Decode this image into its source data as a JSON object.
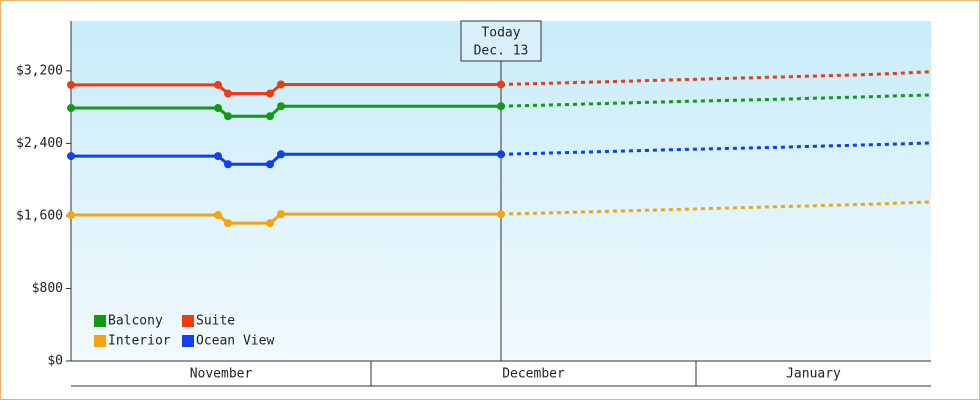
{
  "chart_data": {
    "type": "line",
    "x": [
      0,
      14.7,
      15.7,
      19.9,
      21,
      43,
      50,
      60,
      70,
      80,
      86
    ],
    "xlim": [
      0,
      86
    ],
    "months": [
      {
        "label": "November",
        "start": 0
      },
      {
        "label": "December",
        "start": 30
      },
      {
        "label": "January",
        "start": 62.5
      }
    ],
    "ylim": [
      0,
      3750
    ],
    "yticks": [
      {
        "value": 0,
        "label": "$0"
      },
      {
        "value": 800,
        "label": "$800"
      },
      {
        "value": 1600,
        "label": "$1,600"
      },
      {
        "value": 2400,
        "label": "$2,400"
      },
      {
        "value": 3200,
        "label": "$3,200"
      }
    ],
    "annotation": {
      "lines": [
        "Today",
        "Dec. 13"
      ],
      "x": 43
    },
    "series": [
      {
        "name": "Balcony",
        "color": "#139a13",
        "values": [
          2790,
          2790,
          2700,
          2700,
          2810,
          2810,
          null,
          null,
          null,
          null,
          null
        ],
        "forecast": [
          null,
          null,
          null,
          null,
          null,
          2810,
          2830,
          2860,
          2885,
          2915,
          2935
        ]
      },
      {
        "name": "Suite",
        "color": "#f03a10",
        "values": [
          3045,
          3045,
          2950,
          2950,
          3050,
          3050,
          null,
          null,
          null,
          null,
          null
        ],
        "forecast": [
          null,
          null,
          null,
          null,
          null,
          3050,
          3070,
          3100,
          3130,
          3160,
          3190
        ]
      },
      {
        "name": "Interior",
        "color": "#f5a410",
        "values": [
          1610,
          1610,
          1520,
          1520,
          1620,
          1620,
          null,
          null,
          null,
          null,
          null
        ],
        "forecast": [
          null,
          null,
          null,
          null,
          null,
          1620,
          1640,
          1670,
          1700,
          1730,
          1755
        ]
      },
      {
        "name": "Ocean View",
        "color": "#1040f0",
        "values": [
          2260,
          2260,
          2170,
          2170,
          2280,
          2280,
          null,
          null,
          null,
          null,
          null
        ],
        "forecast": [
          null,
          null,
          null,
          null,
          null,
          2280,
          2300,
          2330,
          2355,
          2385,
          2405
        ]
      }
    ]
  }
}
